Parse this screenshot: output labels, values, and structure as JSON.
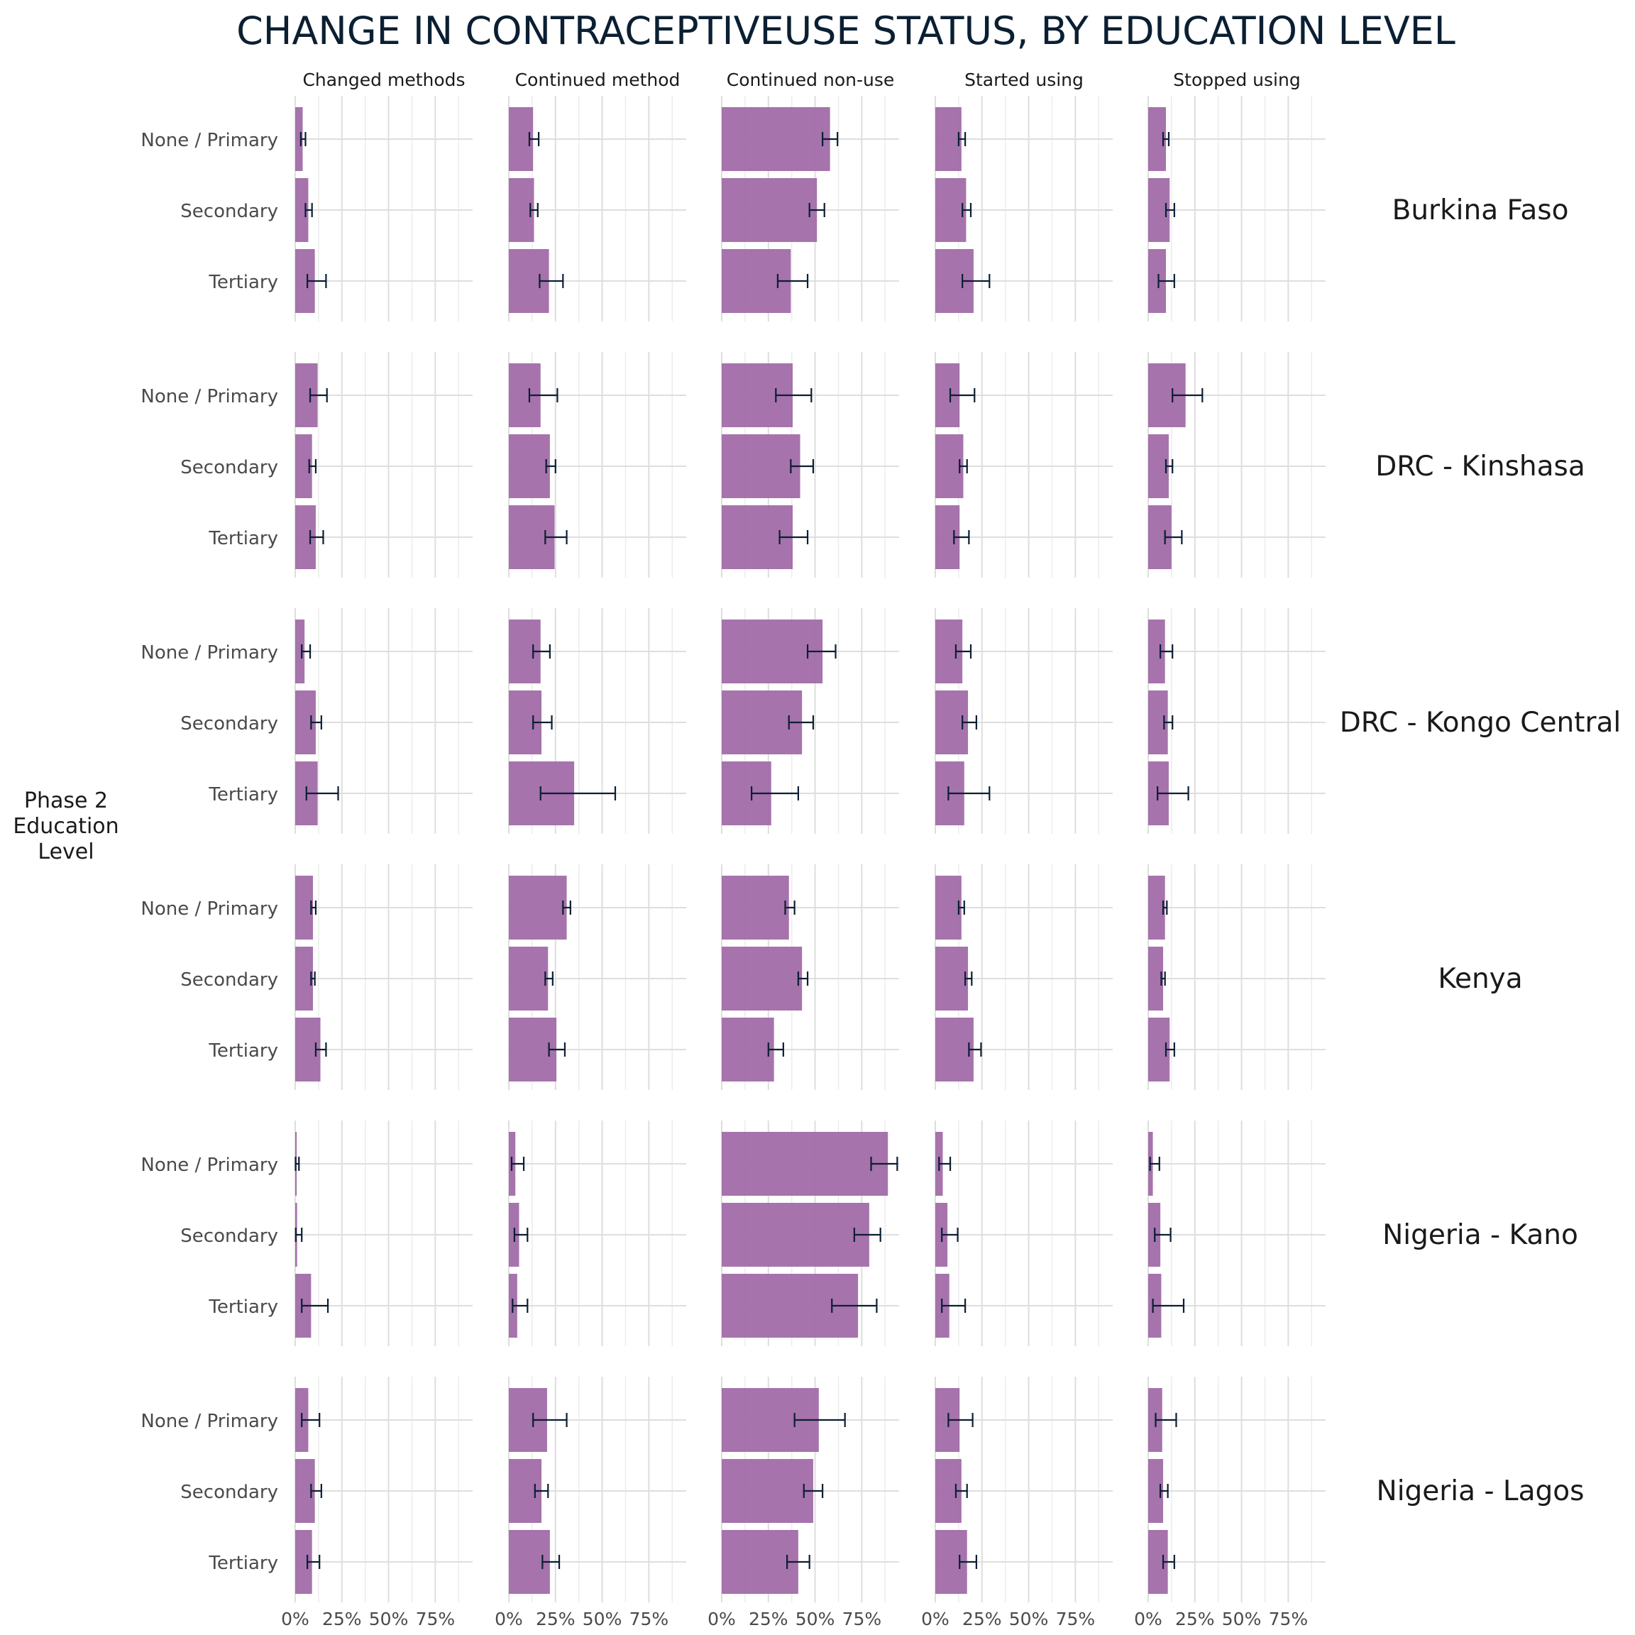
{
  "chart_data": {
    "type": "bar",
    "orientation": "horizontal",
    "title": "CHANGE IN CONTRACEPTIVEUSE STATUS, BY EDUCATION LEVEL",
    "ylabel": "Phase 2\nEducation\nLevel",
    "xlim": [
      0,
      0.95
    ],
    "xticks": [
      "0%",
      "25%",
      "50%",
      "75%"
    ],
    "grid": true,
    "bar_color": "#a16ba8",
    "errorbar_color": "#0b1f33",
    "columns": [
      "Changed methods",
      "Continued method",
      "Continued non-use",
      "Started using",
      "Stopped using"
    ],
    "categories": [
      "None / Primary",
      "Secondary",
      "Tertiary"
    ],
    "panels": [
      {
        "name": "Burkina Faso",
        "values": [
          [
            [
              0.04,
              0.03,
              0.055
            ],
            [
              0.07,
              0.055,
              0.09
            ],
            [
              0.105,
              0.065,
              0.165
            ]
          ],
          [
            [
              0.13,
              0.11,
              0.16
            ],
            [
              0.135,
              0.115,
              0.155
            ],
            [
              0.215,
              0.165,
              0.29
            ]
          ],
          [
            [
              0.58,
              0.54,
              0.62
            ],
            [
              0.51,
              0.47,
              0.55
            ],
            [
              0.37,
              0.3,
              0.46
            ]
          ],
          [
            [
              0.14,
              0.125,
              0.16
            ],
            [
              0.165,
              0.145,
              0.19
            ],
            [
              0.205,
              0.145,
              0.29
            ]
          ],
          [
            [
              0.095,
              0.08,
              0.11
            ],
            [
              0.115,
              0.095,
              0.14
            ],
            [
              0.095,
              0.055,
              0.14
            ]
          ]
        ]
      },
      {
        "name": "DRC - Kinshasa",
        "values": [
          [
            [
              0.12,
              0.08,
              0.17
            ],
            [
              0.09,
              0.075,
              0.11
            ],
            [
              0.11,
              0.08,
              0.15
            ]
          ],
          [
            [
              0.17,
              0.11,
              0.26
            ],
            [
              0.22,
              0.2,
              0.25
            ],
            [
              0.245,
              0.195,
              0.31
            ]
          ],
          [
            [
              0.38,
              0.29,
              0.48
            ],
            [
              0.42,
              0.37,
              0.49
            ],
            [
              0.38,
              0.31,
              0.46
            ]
          ],
          [
            [
              0.13,
              0.08,
              0.21
            ],
            [
              0.15,
              0.13,
              0.17
            ],
            [
              0.13,
              0.1,
              0.18
            ]
          ],
          [
            [
              0.2,
              0.13,
              0.29
            ],
            [
              0.11,
              0.095,
              0.13
            ],
            [
              0.125,
              0.09,
              0.18
            ]
          ]
        ]
      },
      {
        "name": "DRC - Kongo Central",
        "values": [
          [
            [
              0.05,
              0.035,
              0.08
            ],
            [
              0.11,
              0.085,
              0.14
            ],
            [
              0.12,
              0.06,
              0.23
            ]
          ],
          [
            [
              0.17,
              0.13,
              0.22
            ],
            [
              0.175,
              0.13,
              0.23
            ],
            [
              0.35,
              0.17,
              0.57
            ]
          ],
          [
            [
              0.54,
              0.46,
              0.61
            ],
            [
              0.43,
              0.36,
              0.49
            ],
            [
              0.265,
              0.16,
              0.41
            ]
          ],
          [
            [
              0.145,
              0.11,
              0.19
            ],
            [
              0.175,
              0.145,
              0.22
            ],
            [
              0.155,
              0.07,
              0.29
            ]
          ],
          [
            [
              0.09,
              0.065,
              0.13
            ],
            [
              0.105,
              0.085,
              0.13
            ],
            [
              0.11,
              0.05,
              0.215
            ]
          ]
        ]
      },
      {
        "name": "Kenya",
        "values": [
          [
            [
              0.095,
              0.085,
              0.11
            ],
            [
              0.095,
              0.085,
              0.105
            ],
            [
              0.135,
              0.11,
              0.165
            ]
          ],
          [
            [
              0.31,
              0.29,
              0.33
            ],
            [
              0.21,
              0.195,
              0.235
            ],
            [
              0.255,
              0.215,
              0.3
            ]
          ],
          [
            [
              0.36,
              0.34,
              0.39
            ],
            [
              0.43,
              0.41,
              0.46
            ],
            [
              0.28,
              0.25,
              0.33
            ]
          ],
          [
            [
              0.14,
              0.125,
              0.155
            ],
            [
              0.175,
              0.16,
              0.195
            ],
            [
              0.205,
              0.18,
              0.245
            ]
          ],
          [
            [
              0.09,
              0.08,
              0.1
            ],
            [
              0.08,
              0.07,
              0.09
            ],
            [
              0.115,
              0.095,
              0.14
            ]
          ]
        ]
      },
      {
        "name": "Nigeria - Kano",
        "values": [
          [
            [
              0.008,
              0.002,
              0.02
            ],
            [
              0.01,
              0.003,
              0.035
            ],
            [
              0.085,
              0.035,
              0.175
            ]
          ],
          [
            [
              0.035,
              0.015,
              0.08
            ],
            [
              0.055,
              0.03,
              0.1
            ],
            [
              0.045,
              0.02,
              0.1
            ]
          ],
          [
            [
              0.89,
              0.8,
              0.94
            ],
            [
              0.79,
              0.71,
              0.85
            ],
            [
              0.73,
              0.59,
              0.83
            ]
          ],
          [
            [
              0.04,
              0.02,
              0.08
            ],
            [
              0.065,
              0.035,
              0.12
            ],
            [
              0.075,
              0.035,
              0.16
            ]
          ],
          [
            [
              0.025,
              0.01,
              0.06
            ],
            [
              0.065,
              0.035,
              0.12
            ],
            [
              0.07,
              0.025,
              0.19
            ]
          ]
        ]
      },
      {
        "name": "Nigeria - Lagos",
        "values": [
          [
            [
              0.07,
              0.035,
              0.13
            ],
            [
              0.105,
              0.085,
              0.14
            ],
            [
              0.09,
              0.065,
              0.13
            ]
          ],
          [
            [
              0.205,
              0.13,
              0.31
            ],
            [
              0.175,
              0.14,
              0.21
            ],
            [
              0.22,
              0.18,
              0.27
            ]
          ],
          [
            [
              0.52,
              0.39,
              0.66
            ],
            [
              0.49,
              0.44,
              0.54
            ],
            [
              0.41,
              0.35,
              0.47
            ]
          ],
          [
            [
              0.13,
              0.07,
              0.2
            ],
            [
              0.14,
              0.11,
              0.17
            ],
            [
              0.17,
              0.13,
              0.22
            ]
          ],
          [
            [
              0.075,
              0.04,
              0.15
            ],
            [
              0.08,
              0.065,
              0.105
            ],
            [
              0.105,
              0.08,
              0.14
            ]
          ]
        ]
      }
    ]
  }
}
